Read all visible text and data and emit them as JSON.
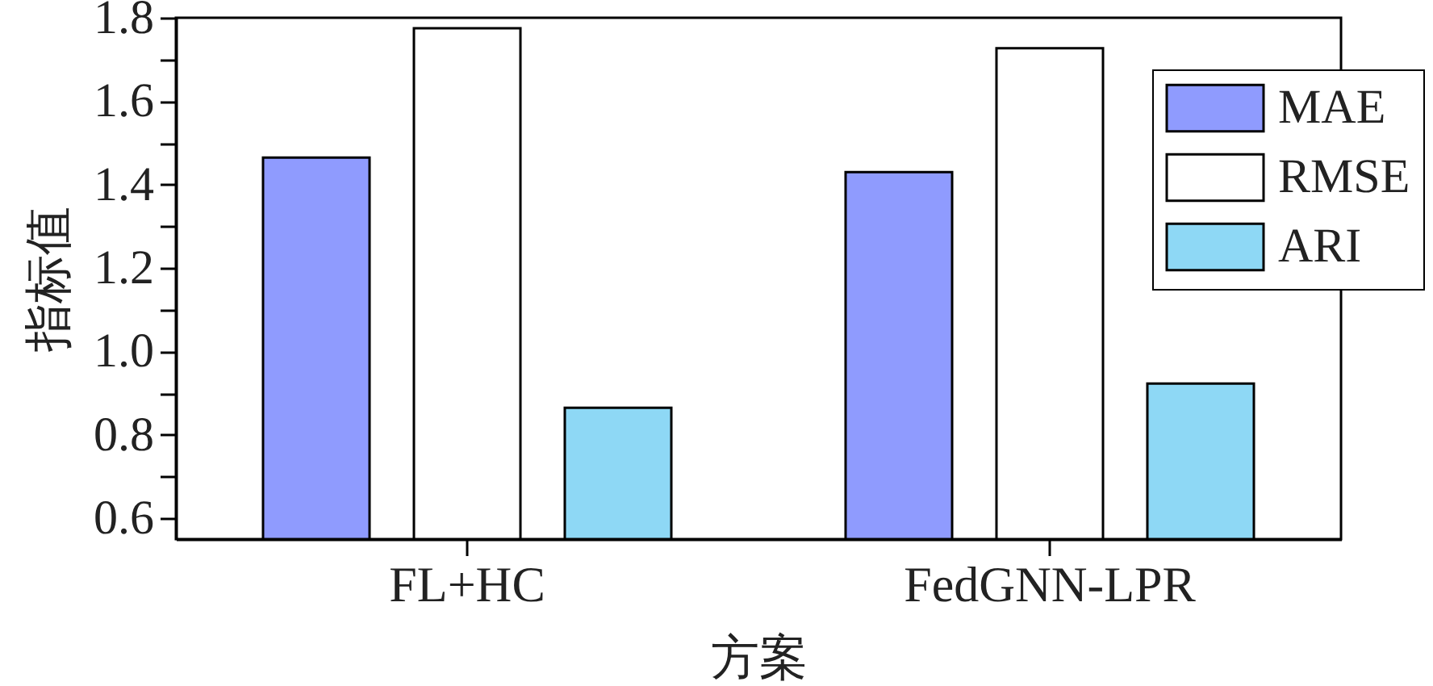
{
  "chart_data": {
    "type": "bar",
    "xlabel": "方案",
    "ylabel": "指标值",
    "categories": [
      "FL+HC",
      "FedGNN-LPR"
    ],
    "series": [
      {
        "name": "MAE",
        "color": "#8f9bfe",
        "values": [
          1.465,
          1.43
        ]
      },
      {
        "name": "RMSE",
        "color": "#ffffff",
        "values": [
          1.775,
          1.727
        ]
      },
      {
        "name": "ARI",
        "color": "#8ed8f5",
        "values": [
          0.865,
          0.923
        ]
      }
    ],
    "ylim": [
      0.55,
      1.8
    ],
    "yticks": [
      0.6,
      {
        "value": 0.7,
        "label": null
      },
      0.8,
      {
        "value": 0.9,
        "label": null
      },
      {
        "value": 1.0,
        "label": "1.0"
      },
      {
        "value": 1.1,
        "label": null
      },
      1.2,
      {
        "value": 1.3,
        "label": null
      },
      1.4,
      {
        "value": 1.5,
        "label": null
      },
      1.6,
      {
        "value": 1.7,
        "label": null
      },
      1.8
    ],
    "legend": "top right"
  }
}
